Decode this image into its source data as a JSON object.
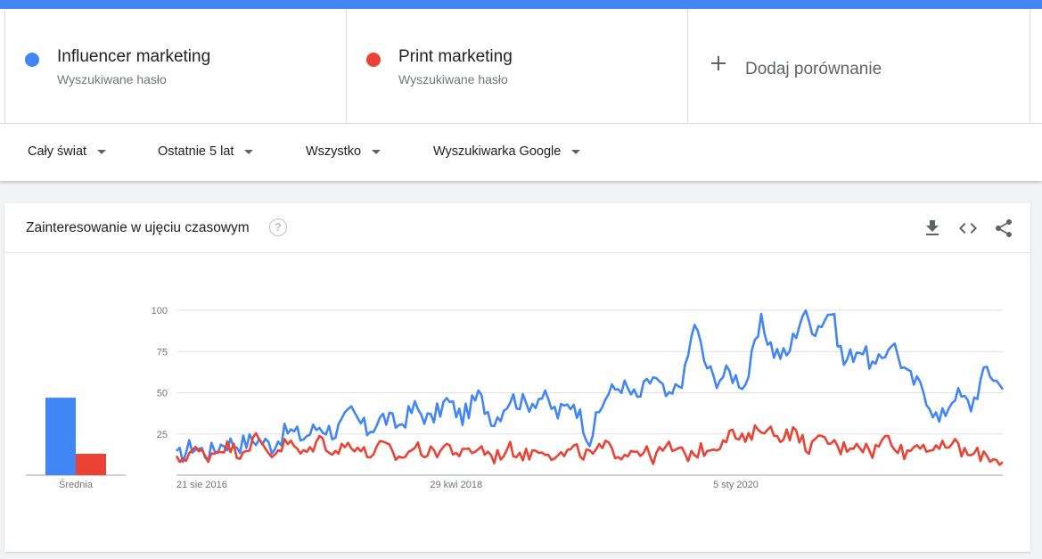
{
  "terms": [
    {
      "name": "Influencer marketing",
      "subtitle": "Wyszukiwane hasło",
      "color": "#4285f4"
    },
    {
      "name": "Print marketing",
      "subtitle": "Wyszukiwane hasło",
      "color": "#ea4335"
    }
  ],
  "add_compare": {
    "label": "Dodaj porównanie",
    "icon": "plus-icon"
  },
  "filters": [
    {
      "label": "Cały świat"
    },
    {
      "label": "Ostatnie 5 lat"
    },
    {
      "label": "Wszystko"
    },
    {
      "label": "Wyszukiwarka Google"
    }
  ],
  "card": {
    "title": "Zainteresowanie w ujęciu czasowym",
    "help": "?",
    "actions": [
      "download-icon",
      "embed-icon",
      "share-icon"
    ]
  },
  "chart_data": {
    "type": "line",
    "ylim": [
      0,
      100
    ],
    "yticks": [
      25,
      50,
      75,
      100
    ],
    "grid": true,
    "x_range": [
      "2016-08-21",
      "2021-08-15"
    ],
    "x_ticks": [
      {
        "date": "2016-08-21",
        "label": "21 sie 2016"
      },
      {
        "date": "2018-04-29",
        "label": "29 kwi 2018"
      },
      {
        "date": "2020-01-05",
        "label": "5 sty 2020"
      }
    ],
    "average": {
      "label": "Średnia",
      "values": [
        47,
        13
      ]
    },
    "series": [
      {
        "color": "#4285f4",
        "anchors": [
          [
            "2016-08-21",
            10
          ],
          [
            "2016-09-25",
            18
          ],
          [
            "2016-10-30",
            13
          ],
          [
            "2016-12-04",
            20
          ],
          [
            "2017-01-08",
            19
          ],
          [
            "2017-02-12",
            22
          ],
          [
            "2017-03-19",
            18
          ],
          [
            "2017-04-23",
            27
          ],
          [
            "2017-05-28",
            23
          ],
          [
            "2017-07-02",
            30
          ],
          [
            "2017-08-06",
            26
          ],
          [
            "2017-09-10",
            38
          ],
          [
            "2017-10-15",
            27
          ],
          [
            "2017-11-19",
            35
          ],
          [
            "2017-12-24",
            30
          ],
          [
            "2018-01-28",
            41
          ],
          [
            "2018-03-04",
            33
          ],
          [
            "2018-04-08",
            45
          ],
          [
            "2018-05-13",
            35
          ],
          [
            "2018-06-17",
            48
          ],
          [
            "2018-07-22",
            33
          ],
          [
            "2018-08-26",
            47
          ],
          [
            "2018-09-30",
            43
          ],
          [
            "2018-11-04",
            48
          ],
          [
            "2018-12-09",
            37
          ],
          [
            "2019-01-13",
            45
          ],
          [
            "2019-02-17",
            22
          ],
          [
            "2019-03-24",
            48
          ],
          [
            "2019-04-28",
            55
          ],
          [
            "2019-06-02",
            46
          ],
          [
            "2019-07-07",
            60
          ],
          [
            "2019-08-11",
            45
          ],
          [
            "2019-09-15",
            62
          ],
          [
            "2019-10-06",
            93
          ],
          [
            "2019-10-27",
            70
          ],
          [
            "2019-11-17",
            58
          ],
          [
            "2019-12-22",
            62
          ],
          [
            "2020-01-26",
            55
          ],
          [
            "2020-03-01",
            92
          ],
          [
            "2020-03-29",
            75
          ],
          [
            "2020-04-26",
            72
          ],
          [
            "2020-05-31",
            98
          ],
          [
            "2020-06-28",
            89
          ],
          [
            "2020-08-02",
            100
          ],
          [
            "2020-08-30",
            68
          ],
          [
            "2020-10-04",
            78
          ],
          [
            "2020-11-08",
            64
          ],
          [
            "2020-12-13",
            82
          ],
          [
            "2021-01-17",
            60
          ],
          [
            "2021-02-21",
            52
          ],
          [
            "2021-03-28",
            32
          ],
          [
            "2021-05-02",
            50
          ],
          [
            "2021-06-06",
            42
          ],
          [
            "2021-07-11",
            65
          ],
          [
            "2021-08-15",
            52
          ]
        ]
      },
      {
        "color": "#ea4335",
        "anchors": [
          [
            "2016-08-21",
            8
          ],
          [
            "2016-09-25",
            15
          ],
          [
            "2016-10-30",
            12
          ],
          [
            "2016-12-04",
            18
          ],
          [
            "2017-01-08",
            14
          ],
          [
            "2017-02-12",
            22
          ],
          [
            "2017-03-19",
            13
          ],
          [
            "2017-04-23",
            20
          ],
          [
            "2017-05-28",
            12
          ],
          [
            "2017-07-02",
            22
          ],
          [
            "2017-08-06",
            14
          ],
          [
            "2017-09-10",
            20
          ],
          [
            "2017-10-15",
            12
          ],
          [
            "2017-11-19",
            18
          ],
          [
            "2017-12-24",
            10
          ],
          [
            "2018-01-28",
            17
          ],
          [
            "2018-03-04",
            13
          ],
          [
            "2018-04-08",
            18
          ],
          [
            "2018-05-13",
            12
          ],
          [
            "2018-06-17",
            17
          ],
          [
            "2018-07-22",
            11
          ],
          [
            "2018-08-26",
            16
          ],
          [
            "2018-09-30",
            12
          ],
          [
            "2018-11-04",
            17
          ],
          [
            "2018-12-09",
            11
          ],
          [
            "2019-01-13",
            15
          ],
          [
            "2019-02-17",
            12
          ],
          [
            "2019-03-24",
            17
          ],
          [
            "2019-04-28",
            13
          ],
          [
            "2019-06-02",
            16
          ],
          [
            "2019-07-07",
            11
          ],
          [
            "2019-08-11",
            17
          ],
          [
            "2019-09-15",
            12
          ],
          [
            "2019-10-20",
            15
          ],
          [
            "2019-11-24",
            18
          ],
          [
            "2019-12-22",
            26
          ],
          [
            "2020-01-26",
            20
          ],
          [
            "2020-03-01",
            30
          ],
          [
            "2020-04-05",
            24
          ],
          [
            "2020-05-10",
            26
          ],
          [
            "2020-06-14",
            17
          ],
          [
            "2020-07-19",
            22
          ],
          [
            "2020-08-23",
            16
          ],
          [
            "2020-09-27",
            20
          ],
          [
            "2020-11-01",
            14
          ],
          [
            "2020-12-06",
            24
          ],
          [
            "2021-01-10",
            13
          ],
          [
            "2021-02-14",
            20
          ],
          [
            "2021-03-21",
            14
          ],
          [
            "2021-04-25",
            20
          ],
          [
            "2021-05-30",
            12
          ],
          [
            "2021-07-04",
            13
          ],
          [
            "2021-08-15",
            8
          ]
        ]
      }
    ]
  }
}
